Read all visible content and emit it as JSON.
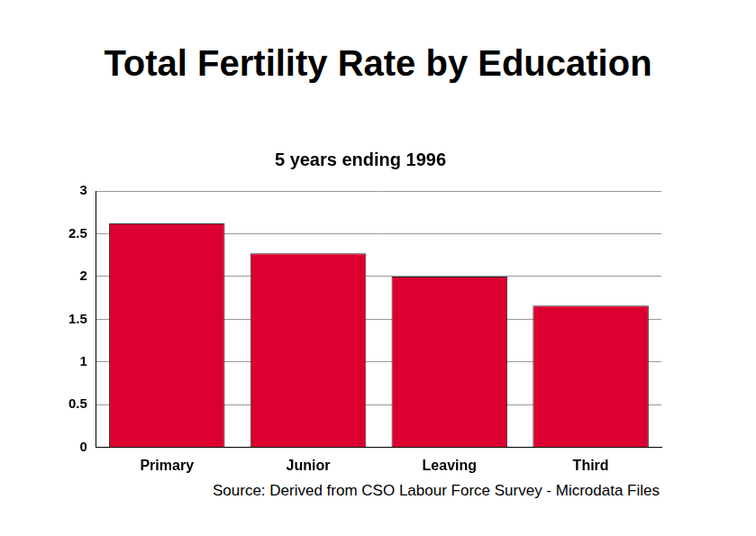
{
  "chart_data": {
    "type": "bar",
    "title": "Total Fertility Rate by Education",
    "subtitle": "5 years ending 1996",
    "annotation": "Source: Derived from CSO Labour Force Survey - Microdata Files",
    "categories": [
      "Primary",
      "Junior",
      "Leaving",
      "Third"
    ],
    "values": [
      2.62,
      2.27,
      2.0,
      1.66
    ],
    "color": "#dc0030",
    "ylim": [
      0,
      3
    ],
    "yticks": [
      0,
      0.5,
      1,
      1.5,
      2,
      2.5,
      3
    ],
    "grid": true
  }
}
